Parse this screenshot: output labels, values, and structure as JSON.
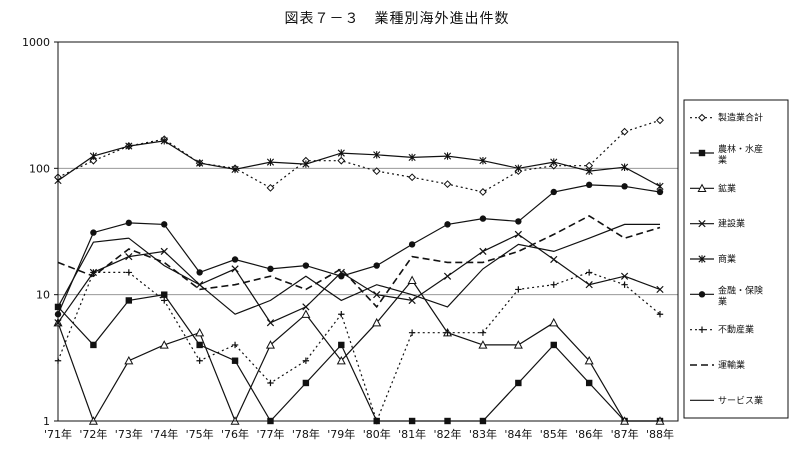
{
  "chart_data": {
    "type": "line",
    "title": "図表７－３　業種別海外進出件数",
    "xlabel": "",
    "ylabel": "",
    "yscale": "log",
    "ylim": [
      1,
      1000
    ],
    "yticks": [
      1,
      10,
      100,
      1000
    ],
    "ytick_labels": [
      "1",
      "10",
      "100",
      "1000"
    ],
    "grid": "horizontal at 10 and 100",
    "legend_position": "right",
    "categories": [
      "'71年",
      "'72年",
      "'73年",
      "'74年",
      "'75年",
      "'76年",
      "'77年",
      "'78年",
      "'79年",
      "'80年",
      "'81年",
      "'82年",
      "'83年",
      "'84年",
      "'85年",
      "'86年",
      "'87年",
      "'88年"
    ],
    "series": [
      {
        "name": "製造業合計",
        "style": "dotted",
        "marker": "diamond",
        "values": [
          85,
          115,
          150,
          170,
          110,
          100,
          70,
          115,
          115,
          95,
          85,
          75,
          65,
          95,
          105,
          105,
          195,
          240
        ]
      },
      {
        "name": "農林・水産業",
        "style": "solid",
        "marker": "square",
        "values": [
          8,
          4,
          9,
          10,
          4,
          3,
          1,
          2,
          4,
          1,
          1,
          1,
          1,
          2,
          4,
          2,
          1,
          1
        ]
      },
      {
        "name": "鉱業",
        "style": "solid",
        "marker": "triangle",
        "values": [
          6,
          1,
          3,
          4,
          5,
          1,
          4,
          7,
          3,
          6,
          13,
          5,
          4,
          4,
          6,
          3,
          1,
          1
        ]
      },
      {
        "name": "建設業",
        "style": "solid",
        "marker": "x",
        "values": [
          6,
          15,
          20,
          22,
          12,
          16,
          6,
          8,
          15,
          10,
          9,
          14,
          22,
          30,
          19,
          12,
          14,
          11
        ]
      },
      {
        "name": "商業",
        "style": "solid",
        "marker": "asterisk",
        "values": [
          80,
          125,
          150,
          165,
          110,
          98,
          112,
          108,
          132,
          128,
          122,
          125,
          115,
          100,
          112,
          95,
          102,
          72
        ]
      },
      {
        "name": "金融・保険業",
        "style": "solid",
        "marker": "circle",
        "values": [
          7,
          31,
          37,
          36,
          15,
          19,
          16,
          17,
          14,
          17,
          25,
          36,
          40,
          38,
          65,
          74,
          72,
          65
        ]
      },
      {
        "name": "不動産業",
        "style": "dotted",
        "marker": "plus",
        "values": [
          3,
          15,
          15,
          9,
          3,
          4,
          2,
          3,
          7,
          1,
          5,
          5,
          5,
          11,
          12,
          15,
          12,
          7
        ]
      },
      {
        "name": "運輸業",
        "style": "dashed",
        "marker": "none",
        "values": [
          18,
          14,
          23,
          18,
          11,
          12,
          14,
          11,
          16,
          8,
          20,
          18,
          18,
          22,
          30,
          42,
          28,
          34
        ]
      },
      {
        "name": "サービス業",
        "style": "solid",
        "marker": "none",
        "values": [
          8,
          26,
          28,
          17,
          12,
          7,
          9,
          14,
          9,
          12,
          10,
          8,
          16,
          25,
          22,
          28,
          36,
          36
        ]
      }
    ]
  }
}
